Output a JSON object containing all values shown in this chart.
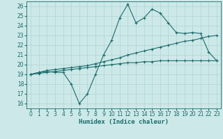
{
  "xlabel": "Humidex (Indice chaleur)",
  "x_ticks": [
    0,
    1,
    2,
    3,
    4,
    5,
    6,
    7,
    8,
    9,
    10,
    11,
    12,
    13,
    14,
    15,
    16,
    17,
    18,
    19,
    20,
    21,
    22,
    23
  ],
  "y_ticks": [
    16,
    17,
    18,
    19,
    20,
    21,
    22,
    23,
    24,
    25,
    26
  ],
  "ylim": [
    15.5,
    26.5
  ],
  "xlim": [
    -0.5,
    23.5
  ],
  "bg_color": "#cde8e8",
  "grid_color": "#aed4d4",
  "line_color": "#1a6b6b",
  "series1": [
    19.0,
    19.2,
    19.3,
    19.2,
    19.2,
    18.0,
    16.0,
    17.0,
    19.0,
    21.0,
    22.5,
    24.8,
    26.2,
    24.3,
    24.8,
    25.7,
    25.3,
    24.3,
    23.3,
    23.2,
    23.3,
    23.2,
    21.3,
    20.4
  ],
  "series2": [
    19.0,
    19.2,
    19.4,
    19.5,
    19.6,
    19.7,
    19.8,
    19.9,
    20.1,
    20.3,
    20.5,
    20.7,
    21.0,
    21.2,
    21.4,
    21.6,
    21.8,
    22.0,
    22.2,
    22.4,
    22.5,
    22.7,
    22.9,
    23.0
  ],
  "series3": [
    19.0,
    19.1,
    19.2,
    19.3,
    19.4,
    19.5,
    19.6,
    19.7,
    19.8,
    19.9,
    20.0,
    20.1,
    20.2,
    20.2,
    20.3,
    20.3,
    20.4,
    20.4,
    20.4,
    20.4,
    20.4,
    20.4,
    20.4,
    20.4
  ],
  "tick_fontsize": 5.5,
  "xlabel_fontsize": 6.5,
  "linewidth": 0.8,
  "markersize": 3.0
}
